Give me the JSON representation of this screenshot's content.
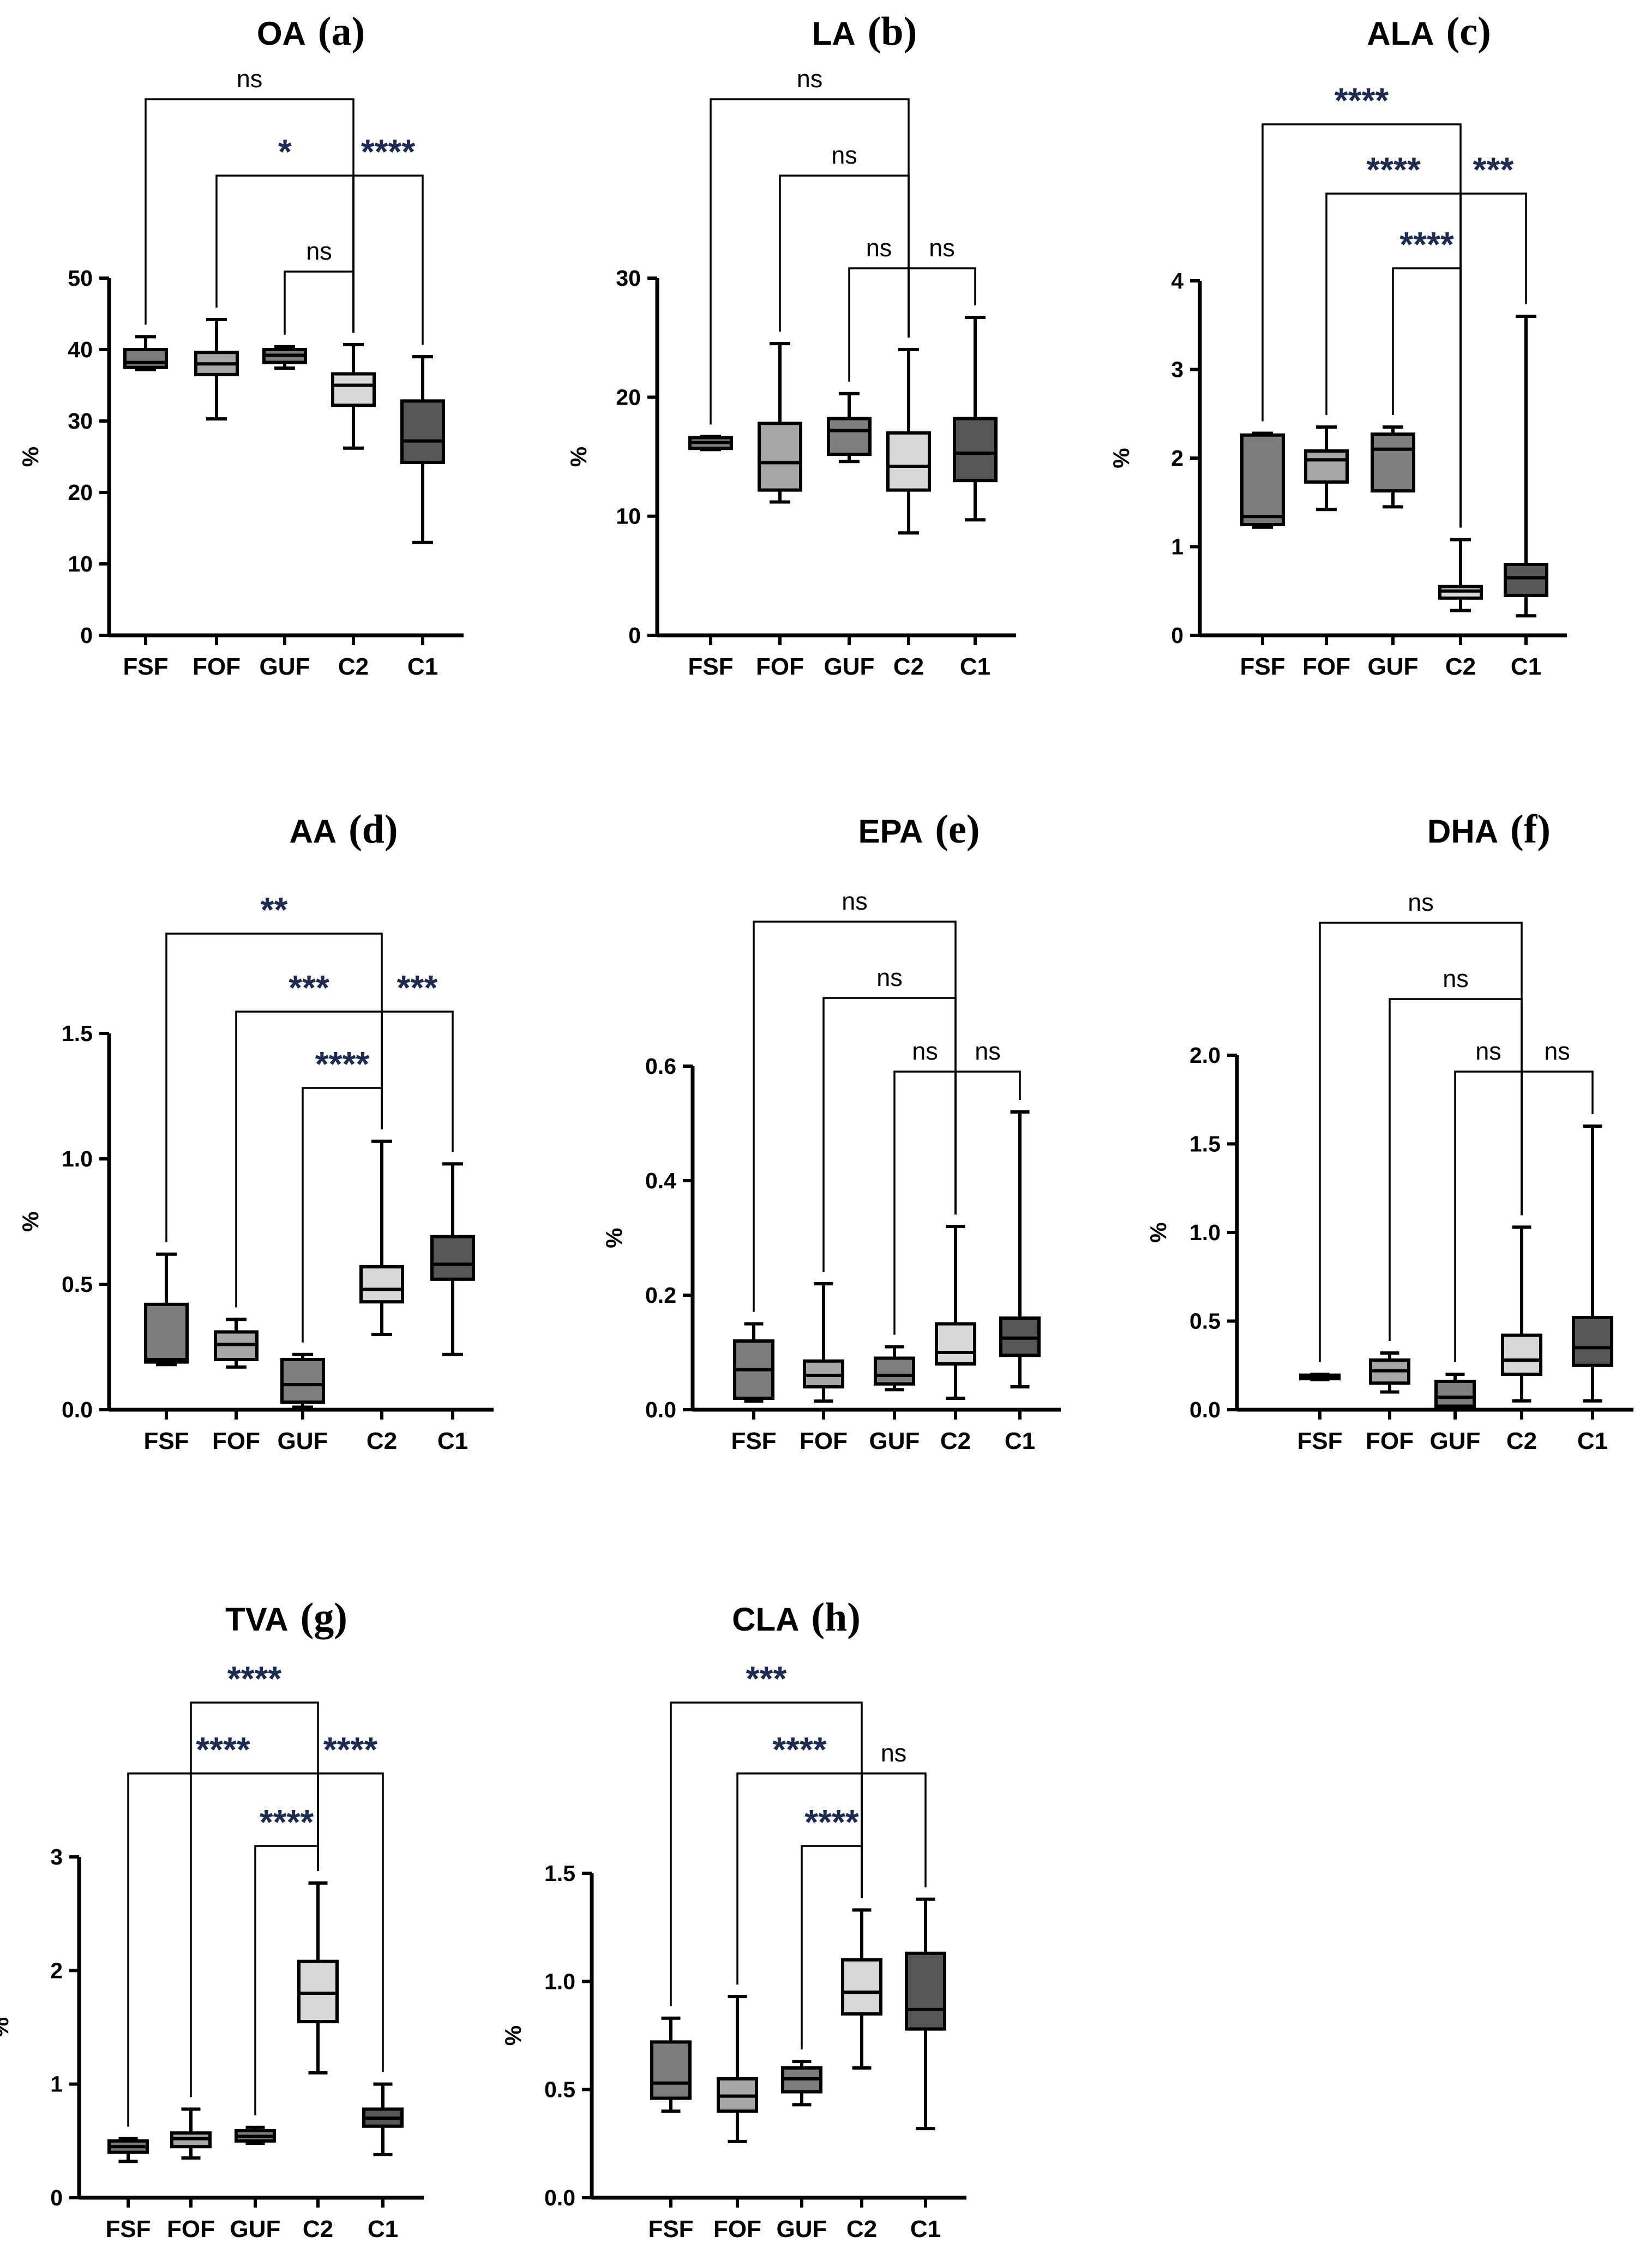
{
  "y_axis_label": "%",
  "categories": [
    "FSF",
    "FOF",
    "GUF",
    "C2",
    "C1"
  ],
  "box_colors": [
    "#7d7d7d",
    "#a6a6a6",
    "#7e7e7e",
    "#d8d8d8",
    "#575757"
  ],
  "panels": [
    {
      "id": "a",
      "title": "OA",
      "letter": "(a)",
      "yticks": [
        "0",
        "10",
        "20",
        "30",
        "40",
        "50"
      ],
      "ymax": 50,
      "comparisons": [
        {
          "from": 0,
          "to": 3,
          "label": "ns"
        },
        {
          "from": 1,
          "to": 3,
          "label": "*"
        },
        {
          "from": 3,
          "to": 4,
          "label": "****"
        },
        {
          "from": 2,
          "to": 3,
          "label": "ns"
        }
      ]
    },
    {
      "id": "b",
      "title": "LA",
      "letter": "(b)",
      "yticks": [
        "0",
        "10",
        "20",
        "30"
      ],
      "ymax": 30,
      "comparisons": [
        {
          "from": 0,
          "to": 3,
          "label": "ns"
        },
        {
          "from": 1,
          "to": 3,
          "label": "ns"
        },
        {
          "from": 2,
          "to": 3,
          "label": "ns"
        },
        {
          "from": 3,
          "to": 4,
          "label": "ns"
        }
      ]
    },
    {
      "id": "c",
      "title": "ALA",
      "letter": "(c)",
      "yticks": [
        "0",
        "1",
        "2",
        "3",
        "4"
      ],
      "ymax": 4,
      "comparisons": [
        {
          "from": 0,
          "to": 3,
          "label": "****"
        },
        {
          "from": 1,
          "to": 3,
          "label": "****"
        },
        {
          "from": 3,
          "to": 4,
          "label": "***"
        },
        {
          "from": 2,
          "to": 3,
          "label": "****"
        }
      ]
    },
    {
      "id": "d",
      "title": "AA",
      "letter": "(d)",
      "yticks": [
        "0.0",
        "0.5",
        "1.0",
        "1.5"
      ],
      "ymax": 1.5,
      "comparisons": [
        {
          "from": 0,
          "to": 3,
          "label": "**"
        },
        {
          "from": 1,
          "to": 3,
          "label": "***"
        },
        {
          "from": 3,
          "to": 4,
          "label": "***"
        },
        {
          "from": 2,
          "to": 3,
          "label": "****"
        }
      ]
    },
    {
      "id": "e",
      "title": "EPA",
      "letter": "(e)",
      "yticks": [
        "0.0",
        "0.2",
        "0.4",
        "0.6"
      ],
      "ymax": 0.6,
      "comparisons": [
        {
          "from": 0,
          "to": 3,
          "label": "ns"
        },
        {
          "from": 1,
          "to": 3,
          "label": "ns"
        },
        {
          "from": 2,
          "to": 3,
          "label": "ns"
        },
        {
          "from": 3,
          "to": 4,
          "label": "ns"
        }
      ]
    },
    {
      "id": "f",
      "title": "DHA",
      "letter": "(f)",
      "yticks": [
        "0.0",
        "0.5",
        "1.0",
        "1.5",
        "2.0"
      ],
      "ymax": 2.0,
      "comparisons": [
        {
          "from": 0,
          "to": 3,
          "label": "ns"
        },
        {
          "from": 1,
          "to": 3,
          "label": "ns"
        },
        {
          "from": 2,
          "to": 3,
          "label": "ns"
        },
        {
          "from": 3,
          "to": 4,
          "label": "ns"
        }
      ]
    },
    {
      "id": "g",
      "title": "TVA",
      "letter": "(g)",
      "yticks": [
        "0",
        "1",
        "2",
        "3"
      ],
      "ymax": 3,
      "comparisons": [
        {
          "from": 1,
          "to": 3,
          "label": "****"
        },
        {
          "from": 0,
          "to": 3,
          "label": "****"
        },
        {
          "from": 3,
          "to": 4,
          "label": "****"
        },
        {
          "from": 2,
          "to": 3,
          "label": "****"
        }
      ]
    },
    {
      "id": "h",
      "title": "CLA",
      "letter": "(h)",
      "yticks": [
        "0.0",
        "0.5",
        "1.0",
        "1.5"
      ],
      "ymax": 1.5,
      "comparisons": [
        {
          "from": 0,
          "to": 3,
          "label": "***"
        },
        {
          "from": 1,
          "to": 3,
          "label": "****"
        },
        {
          "from": 3,
          "to": 4,
          "label": "ns"
        },
        {
          "from": 2,
          "to": 3,
          "label": "****"
        }
      ]
    }
  ],
  "chart_data": [
    {
      "type": "box",
      "panel": "a",
      "title": "OA (a)",
      "ylabel": "%",
      "ylim": [
        0,
        50
      ],
      "categories": [
        "FSF",
        "FOF",
        "GUF",
        "C2",
        "C1"
      ],
      "series": [
        {
          "name": "FSF",
          "min": 37.2,
          "q1": 37.5,
          "median": 38.2,
          "q3": 40.0,
          "max": 41.8
        },
        {
          "name": "FOF",
          "min": 30.3,
          "q1": 36.5,
          "median": 38.0,
          "q3": 39.6,
          "max": 44.2
        },
        {
          "name": "GUF",
          "min": 37.4,
          "q1": 38.2,
          "median": 39.2,
          "q3": 40.0,
          "max": 40.4
        },
        {
          "name": "C2",
          "min": 26.2,
          "q1": 32.2,
          "median": 35.0,
          "q3": 36.6,
          "max": 40.7
        },
        {
          "name": "C1",
          "min": 13.0,
          "q1": 24.2,
          "median": 27.2,
          "q3": 32.8,
          "max": 39.0
        }
      ]
    },
    {
      "type": "box",
      "panel": "b",
      "title": "LA (b)",
      "ylabel": "%",
      "ylim": [
        0,
        30
      ],
      "categories": [
        "FSF",
        "FOF",
        "GUF",
        "C2",
        "C1"
      ],
      "series": [
        {
          "name": "FSF",
          "min": 15.6,
          "q1": 15.7,
          "median": 16.2,
          "q3": 16.6,
          "max": 16.7
        },
        {
          "name": "FOF",
          "min": 11.2,
          "q1": 12.2,
          "median": 14.5,
          "q3": 17.8,
          "max": 24.5
        },
        {
          "name": "GUF",
          "min": 14.6,
          "q1": 15.2,
          "median": 17.2,
          "q3": 18.2,
          "max": 20.3
        },
        {
          "name": "C2",
          "min": 8.6,
          "q1": 12.2,
          "median": 14.2,
          "q3": 17.0,
          "max": 24.0
        },
        {
          "name": "C1",
          "min": 9.7,
          "q1": 13.0,
          "median": 15.3,
          "q3": 18.2,
          "max": 26.7
        }
      ]
    },
    {
      "type": "box",
      "panel": "c",
      "title": "ALA (c)",
      "ylabel": "%",
      "ylim": [
        0,
        4
      ],
      "categories": [
        "FSF",
        "FOF",
        "GUF",
        "C2",
        "C1"
      ],
      "series": [
        {
          "name": "FSF",
          "min": 1.22,
          "q1": 1.25,
          "median": 1.34,
          "q3": 2.26,
          "max": 2.28
        },
        {
          "name": "FOF",
          "min": 1.42,
          "q1": 1.73,
          "median": 1.98,
          "q3": 2.08,
          "max": 2.35
        },
        {
          "name": "GUF",
          "min": 1.45,
          "q1": 1.63,
          "median": 2.1,
          "q3": 2.27,
          "max": 2.35
        },
        {
          "name": "C2",
          "min": 0.28,
          "q1": 0.42,
          "median": 0.5,
          "q3": 0.55,
          "max": 1.08
        },
        {
          "name": "C1",
          "min": 0.22,
          "q1": 0.45,
          "median": 0.65,
          "q3": 0.8,
          "max": 3.6
        }
      ]
    },
    {
      "type": "box",
      "panel": "d",
      "title": "AA (d)",
      "ylabel": "%",
      "ylim": [
        0,
        1.5
      ],
      "categories": [
        "FSF",
        "FOF",
        "GUF",
        "C2",
        "C1"
      ],
      "series": [
        {
          "name": "FSF",
          "min": 0.18,
          "q1": 0.19,
          "median": 0.2,
          "q3": 0.42,
          "max": 0.62
        },
        {
          "name": "FOF",
          "min": 0.17,
          "q1": 0.2,
          "median": 0.26,
          "q3": 0.31,
          "max": 0.36
        },
        {
          "name": "GUF",
          "min": 0.01,
          "q1": 0.03,
          "median": 0.1,
          "q3": 0.2,
          "max": 0.22
        },
        {
          "name": "C2",
          "min": 0.3,
          "q1": 0.43,
          "median": 0.48,
          "q3": 0.57,
          "max": 1.07
        },
        {
          "name": "C1",
          "min": 0.22,
          "q1": 0.52,
          "median": 0.58,
          "q3": 0.69,
          "max": 0.98
        }
      ]
    },
    {
      "type": "box",
      "panel": "e",
      "title": "EPA (e)",
      "ylabel": "%",
      "ylim": [
        0,
        0.6
      ],
      "categories": [
        "FSF",
        "FOF",
        "GUF",
        "C2",
        "C1"
      ],
      "series": [
        {
          "name": "FSF",
          "min": 0.015,
          "q1": 0.02,
          "median": 0.07,
          "q3": 0.12,
          "max": 0.15
        },
        {
          "name": "FOF",
          "min": 0.015,
          "q1": 0.04,
          "median": 0.06,
          "q3": 0.085,
          "max": 0.22
        },
        {
          "name": "GUF",
          "min": 0.035,
          "q1": 0.045,
          "median": 0.06,
          "q3": 0.09,
          "max": 0.11
        },
        {
          "name": "C2",
          "min": 0.02,
          "q1": 0.08,
          "median": 0.1,
          "q3": 0.15,
          "max": 0.32
        },
        {
          "name": "C1",
          "min": 0.04,
          "q1": 0.095,
          "median": 0.125,
          "q3": 0.16,
          "max": 0.52
        }
      ]
    },
    {
      "type": "box",
      "panel": "f",
      "title": "DHA (f)",
      "ylabel": "%",
      "ylim": [
        0,
        2.0
      ],
      "categories": [
        "FSF",
        "FOF",
        "GUF",
        "C2",
        "C1"
      ],
      "series": [
        {
          "name": "FSF",
          "min": 0.17,
          "q1": 0.175,
          "median": 0.18,
          "q3": 0.195,
          "max": 0.2
        },
        {
          "name": "FOF",
          "min": 0.1,
          "q1": 0.15,
          "median": 0.22,
          "q3": 0.28,
          "max": 0.32
        },
        {
          "name": "GUF",
          "min": 0.01,
          "q1": 0.02,
          "median": 0.07,
          "q3": 0.16,
          "max": 0.2
        },
        {
          "name": "C2",
          "min": 0.05,
          "q1": 0.2,
          "median": 0.28,
          "q3": 0.42,
          "max": 1.03
        },
        {
          "name": "C1",
          "min": 0.05,
          "q1": 0.25,
          "median": 0.35,
          "q3": 0.52,
          "max": 1.6
        }
      ]
    },
    {
      "type": "box",
      "panel": "g",
      "title": "TVA (g)",
      "ylabel": "%",
      "ylim": [
        0,
        3
      ],
      "categories": [
        "FSF",
        "FOF",
        "GUF",
        "C2",
        "C1"
      ],
      "series": [
        {
          "name": "FSF",
          "min": 0.32,
          "q1": 0.4,
          "median": 0.45,
          "q3": 0.5,
          "max": 0.52
        },
        {
          "name": "FOF",
          "min": 0.35,
          "q1": 0.45,
          "median": 0.52,
          "q3": 0.57,
          "max": 0.78
        },
        {
          "name": "GUF",
          "min": 0.48,
          "q1": 0.5,
          "median": 0.54,
          "q3": 0.59,
          "max": 0.62
        },
        {
          "name": "C2",
          "min": 1.1,
          "q1": 1.55,
          "median": 1.8,
          "q3": 2.08,
          "max": 2.77
        },
        {
          "name": "C1",
          "min": 0.38,
          "q1": 0.63,
          "median": 0.7,
          "q3": 0.78,
          "max": 1.0
        }
      ]
    },
    {
      "type": "box",
      "panel": "h",
      "title": "CLA (h)",
      "ylabel": "%",
      "ylim": [
        0,
        1.5
      ],
      "categories": [
        "FSF",
        "FOF",
        "GUF",
        "C2",
        "C1"
      ],
      "series": [
        {
          "name": "FSF",
          "min": 0.4,
          "q1": 0.46,
          "median": 0.53,
          "q3": 0.72,
          "max": 0.83
        },
        {
          "name": "FOF",
          "min": 0.26,
          "q1": 0.4,
          "median": 0.47,
          "q3": 0.55,
          "max": 0.93
        },
        {
          "name": "GUF",
          "min": 0.43,
          "q1": 0.49,
          "median": 0.55,
          "q3": 0.6,
          "max": 0.63
        },
        {
          "name": "C2",
          "min": 0.6,
          "q1": 0.85,
          "median": 0.95,
          "q3": 1.1,
          "max": 1.33
        },
        {
          "name": "C1",
          "min": 0.32,
          "q1": 0.78,
          "median": 0.87,
          "q3": 1.13,
          "max": 1.38
        }
      ]
    }
  ]
}
